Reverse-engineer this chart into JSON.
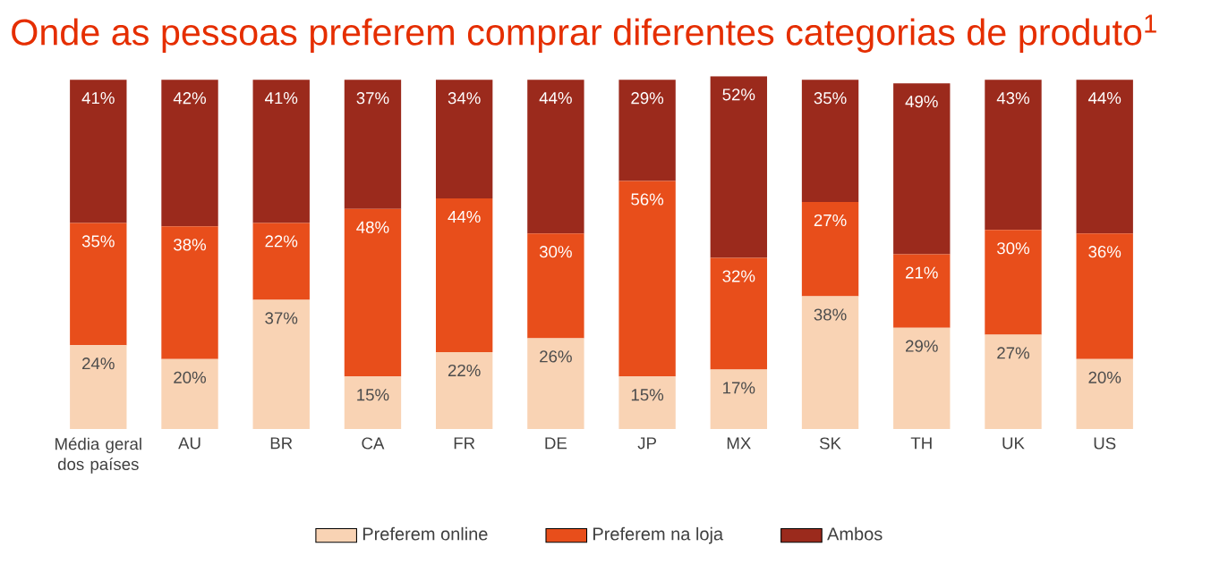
{
  "chart_data": {
    "type": "bar",
    "stacked": true,
    "title": "Onde as pessoas preferem comprar diferentes categorias de produto$^{1}$",
    "categories": [
      "Média geral dos países",
      "AU",
      "BR",
      "CA",
      "FR",
      "DE",
      "JP",
      "MX",
      "SK",
      "TH",
      "UK",
      "US"
    ],
    "series": [
      {
        "name": "Preferem online",
        "color": "#f9d3b4",
        "values": [
          24,
          20,
          37,
          15,
          22,
          26,
          15,
          17,
          38,
          29,
          27,
          20
        ],
        "value_labels": [
          "24%",
          "20%",
          "37%",
          "15%",
          "22%",
          "26%",
          "15%",
          "17%",
          "38%",
          "29%",
          "27%",
          "20%"
        ]
      },
      {
        "name": "Preferem na loja",
        "color": "#e84e1b",
        "values": [
          35,
          38,
          22,
          48,
          44,
          30,
          56,
          32,
          27,
          21,
          30,
          36
        ],
        "value_labels": [
          "35%",
          "38%",
          "22%",
          "48%",
          "44%",
          "30%",
          "56%",
          "32%",
          "27%",
          "21%",
          "30%",
          "36%"
        ]
      },
      {
        "name": "Ambos",
        "color": "#9b2a1c",
        "values": [
          41,
          42,
          41,
          37,
          34,
          44,
          29,
          52,
          35,
          49,
          43,
          44
        ],
        "value_labels": [
          "41%",
          "42%",
          "41%",
          "37%",
          "34%",
          "44%",
          "29%",
          "52%",
          "35%",
          "49%",
          "43%",
          "44%"
        ]
      }
    ],
    "legend": "bottom"
  }
}
